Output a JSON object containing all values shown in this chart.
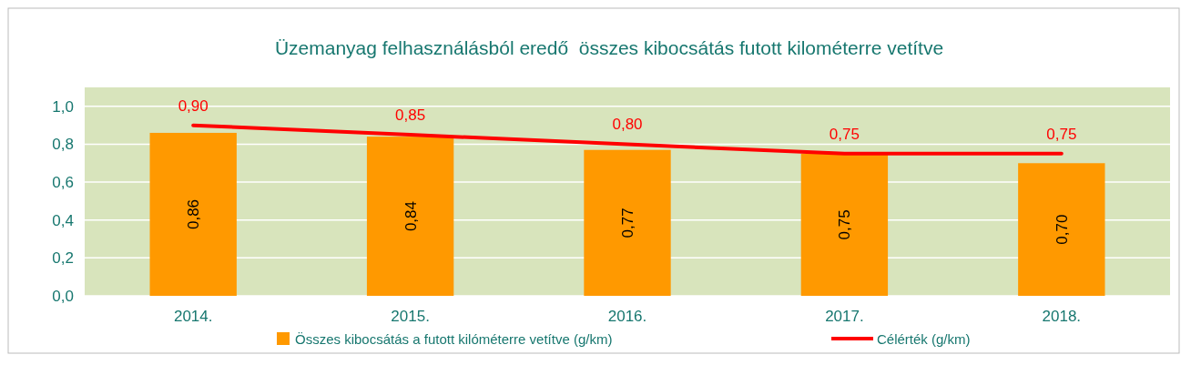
{
  "chart_data": {
    "type": "bar",
    "title": "Üzemanyag felhasználásból eredő  összes kibocsátás futott kilométerre vetítve",
    "categories": [
      "2014.",
      "2015.",
      "2016.",
      "2017.",
      "2018."
    ],
    "series": [
      {
        "name": "Összes kibocsátás a futott kilóméterre vetítve (g/km)",
        "color": "#ff9900",
        "values": [
          0.86,
          0.84,
          0.77,
          0.75,
          0.7
        ],
        "value_labels": [
          "0,86",
          "0,84",
          "0,77",
          "0,75",
          "0,70"
        ]
      },
      {
        "name": "Célérték (g/km)",
        "type": "line",
        "color": "#ff0000",
        "values": [
          0.9,
          0.85,
          0.8,
          0.75,
          0.75
        ],
        "value_labels": [
          "0,90",
          "0,85",
          "0,80",
          "0,75",
          "0,75"
        ]
      }
    ],
    "ylim": [
      0,
      1.1
    ],
    "yticks": [
      {
        "value": 0,
        "label": "0,0"
      },
      {
        "value": 0.2,
        "label": "0,2"
      },
      {
        "value": 0.4,
        "label": "0,4"
      },
      {
        "value": 0.6,
        "label": "0,6"
      },
      {
        "value": 0.8,
        "label": "0,8"
      },
      {
        "value": 1.0,
        "label": "1,0"
      }
    ],
    "grid": "y",
    "legend": "bottom",
    "marker": "none",
    "line_style": "solid"
  }
}
